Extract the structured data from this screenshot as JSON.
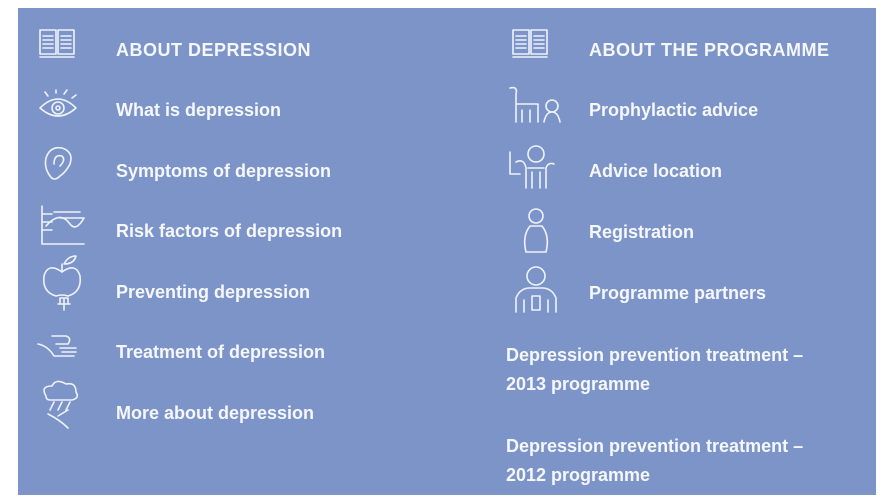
{
  "left": {
    "heading": "ABOUT DEPRESSION",
    "items": [
      "What is depression",
      "Symptoms of depression",
      "Risk factors of depression",
      "Preventing depression",
      "Treatment of depression",
      "More about depression"
    ]
  },
  "right": {
    "heading": "ABOUT THE PROGRAMME",
    "items": [
      "Prophylactic advice",
      "Advice location",
      "Registration",
      "Programme partners"
    ],
    "links": [
      [
        "Depression prevention treatment –",
        "2013 programme"
      ],
      [
        "Depression prevention treatment –",
        "2012 programme"
      ]
    ]
  }
}
